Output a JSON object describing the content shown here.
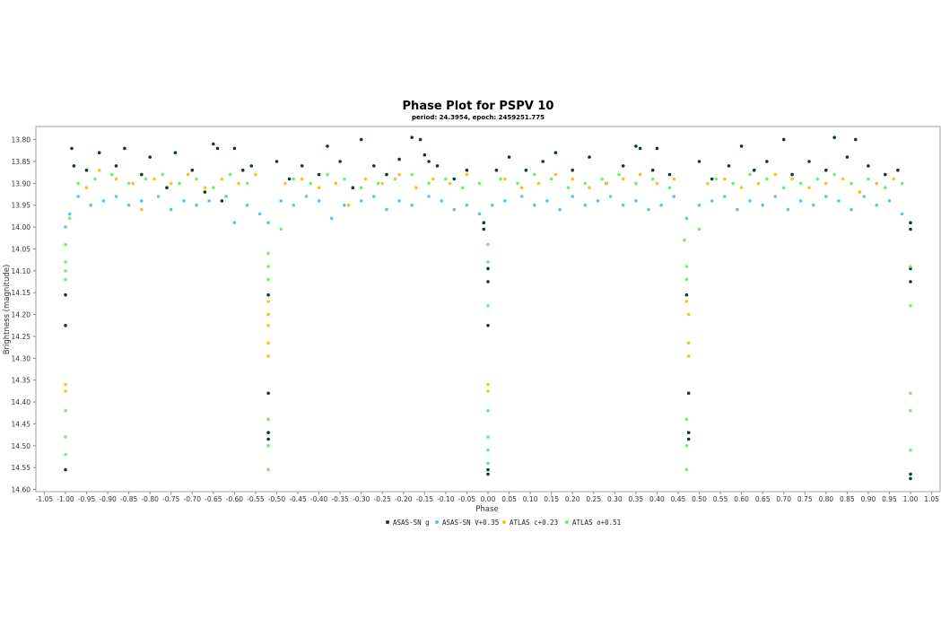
{
  "chart_data": {
    "type": "scatter",
    "title": "Phase Plot for PSPV 10",
    "subtitle": "period: 24.3954, epoch: 2459251.775",
    "xlabel": "Phase",
    "ylabel": "Brightness (magnitude)",
    "xlim": [
      -1.07,
      1.07
    ],
    "ylim": [
      14.605,
      13.77
    ],
    "y_inverted": true,
    "xticks": [
      "-1.05",
      "-1.00",
      "-0.95",
      "-0.90",
      "-0.85",
      "-0.80",
      "-0.75",
      "-0.70",
      "-0.65",
      "-0.60",
      "-0.55",
      "-0.50",
      "-0.45",
      "-0.40",
      "-0.35",
      "-0.30",
      "-0.25",
      "-0.20",
      "-0.15",
      "-0.10",
      "-0.05",
      "0.00",
      "0.05",
      "0.10",
      "0.15",
      "0.20",
      "0.25",
      "0.30",
      "0.35",
      "0.40",
      "0.45",
      "0.50",
      "0.55",
      "0.60",
      "0.65",
      "0.70",
      "0.75",
      "0.80",
      "0.85",
      "0.90",
      "0.95",
      "1.00",
      "1.05"
    ],
    "yticks": [
      "13.80",
      "13.85",
      "13.90",
      "13.95",
      "14.00",
      "14.05",
      "14.10",
      "14.15",
      "14.20",
      "14.25",
      "14.30",
      "14.35",
      "14.40",
      "14.45",
      "14.50",
      "14.55",
      "14.60"
    ],
    "grid": false,
    "legend_position": "bottom",
    "series": [
      {
        "name": "ASAS-SN g",
        "color": "#0d3b3b",
        "points": [
          [
            -1.0,
            14.155
          ],
          [
            -1.0,
            14.225
          ],
          [
            -1.0,
            14.555
          ],
          [
            -0.985,
            13.82
          ],
          [
            -0.98,
            13.86
          ],
          [
            -0.95,
            13.87
          ],
          [
            -0.92,
            13.83
          ],
          [
            -0.88,
            13.86
          ],
          [
            -0.86,
            13.82
          ],
          [
            -0.82,
            13.88
          ],
          [
            -0.8,
            13.84
          ],
          [
            -0.76,
            13.91
          ],
          [
            -0.74,
            13.83
          ],
          [
            -0.7,
            13.87
          ],
          [
            -0.67,
            13.92
          ],
          [
            -0.65,
            13.81
          ],
          [
            -0.64,
            13.82
          ],
          [
            -0.63,
            13.94
          ],
          [
            -0.6,
            13.82
          ],
          [
            -0.58,
            13.87
          ],
          [
            -0.56,
            13.86
          ],
          [
            -0.52,
            14.155
          ],
          [
            -0.52,
            14.38
          ],
          [
            -0.52,
            14.47
          ],
          [
            -0.52,
            14.485
          ],
          [
            -0.5,
            13.85
          ],
          [
            -0.47,
            13.89
          ],
          [
            -0.44,
            13.86
          ],
          [
            -0.4,
            13.88
          ],
          [
            -0.38,
            13.815
          ],
          [
            -0.35,
            13.85
          ],
          [
            -0.32,
            13.91
          ],
          [
            -0.3,
            13.8
          ],
          [
            -0.27,
            13.86
          ],
          [
            -0.24,
            13.88
          ],
          [
            -0.21,
            13.845
          ],
          [
            -0.18,
            13.795
          ],
          [
            -0.16,
            13.8
          ],
          [
            -0.15,
            13.835
          ],
          [
            -0.14,
            13.85
          ],
          [
            -0.12,
            13.86
          ],
          [
            -0.08,
            13.89
          ],
          [
            -0.05,
            13.87
          ],
          [
            -0.01,
            13.99
          ],
          [
            -0.01,
            14.005
          ],
          [
            0.0,
            14.095
          ],
          [
            0.0,
            14.125
          ],
          [
            0.0,
            14.225
          ],
          [
            0.0,
            14.555
          ],
          [
            0.0,
            14.565
          ],
          [
            0.02,
            13.87
          ],
          [
            0.05,
            13.84
          ],
          [
            0.09,
            13.87
          ],
          [
            0.13,
            13.85
          ],
          [
            0.16,
            13.83
          ],
          [
            0.2,
            13.87
          ],
          [
            0.24,
            13.84
          ],
          [
            0.28,
            13.9
          ],
          [
            0.32,
            13.86
          ],
          [
            0.35,
            13.815
          ],
          [
            0.36,
            13.82
          ],
          [
            0.39,
            13.87
          ],
          [
            0.4,
            13.82
          ],
          [
            0.43,
            13.88
          ],
          [
            0.47,
            14.155
          ],
          [
            0.475,
            14.38
          ],
          [
            0.475,
            14.47
          ],
          [
            0.475,
            14.485
          ],
          [
            0.5,
            13.85
          ],
          [
            0.53,
            13.89
          ],
          [
            0.57,
            13.86
          ],
          [
            0.6,
            13.815
          ],
          [
            0.63,
            13.87
          ],
          [
            0.66,
            13.85
          ],
          [
            0.7,
            13.8
          ],
          [
            0.72,
            13.88
          ],
          [
            0.76,
            13.85
          ],
          [
            0.8,
            13.87
          ],
          [
            0.82,
            13.795
          ],
          [
            0.85,
            13.84
          ],
          [
            0.87,
            13.8
          ],
          [
            0.9,
            13.86
          ],
          [
            0.94,
            13.88
          ],
          [
            0.97,
            13.87
          ],
          [
            1.0,
            13.99
          ],
          [
            1.0,
            14.005
          ],
          [
            1.0,
            14.095
          ],
          [
            1.0,
            14.125
          ],
          [
            1.0,
            14.565
          ],
          [
            1.0,
            14.575
          ]
        ]
      },
      {
        "name": "ASAS-SN V+0.35",
        "color": "#5bc4f5",
        "points": [
          [
            -1.0,
            14.0
          ],
          [
            -0.99,
            13.97
          ],
          [
            -0.97,
            13.93
          ],
          [
            -0.94,
            13.95
          ],
          [
            -0.91,
            13.94
          ],
          [
            -0.88,
            13.93
          ],
          [
            -0.85,
            13.95
          ],
          [
            -0.82,
            13.94
          ],
          [
            -0.78,
            13.93
          ],
          [
            -0.75,
            13.96
          ],
          [
            -0.72,
            13.94
          ],
          [
            -0.69,
            13.95
          ],
          [
            -0.66,
            13.94
          ],
          [
            -0.62,
            13.93
          ],
          [
            -0.6,
            13.99
          ],
          [
            -0.57,
            13.95
          ],
          [
            -0.54,
            13.97
          ],
          [
            -0.52,
            13.99
          ],
          [
            -0.49,
            13.94
          ],
          [
            -0.46,
            13.95
          ],
          [
            -0.43,
            13.93
          ],
          [
            -0.4,
            13.94
          ],
          [
            -0.37,
            13.98
          ],
          [
            -0.34,
            13.95
          ],
          [
            -0.3,
            13.94
          ],
          [
            -0.27,
            13.93
          ],
          [
            -0.24,
            13.96
          ],
          [
            -0.21,
            13.94
          ],
          [
            -0.18,
            13.95
          ],
          [
            -0.14,
            13.93
          ],
          [
            -0.11,
            13.94
          ],
          [
            -0.08,
            13.96
          ],
          [
            -0.05,
            13.95
          ],
          [
            -0.02,
            13.97
          ],
          [
            0.01,
            13.95
          ],
          [
            0.04,
            13.94
          ],
          [
            0.08,
            13.93
          ],
          [
            0.11,
            13.95
          ],
          [
            0.14,
            13.94
          ],
          [
            0.17,
            13.96
          ],
          [
            0.2,
            13.93
          ],
          [
            0.23,
            13.95
          ],
          [
            0.26,
            13.94
          ],
          [
            0.29,
            13.93
          ],
          [
            0.32,
            13.95
          ],
          [
            0.35,
            13.94
          ],
          [
            0.38,
            13.96
          ],
          [
            0.41,
            13.95
          ],
          [
            0.44,
            13.93
          ],
          [
            0.47,
            13.98
          ],
          [
            0.5,
            13.95
          ],
          [
            0.53,
            13.94
          ],
          [
            0.56,
            13.93
          ],
          [
            0.59,
            13.96
          ],
          [
            0.62,
            13.94
          ],
          [
            0.65,
            13.95
          ],
          [
            0.68,
            13.93
          ],
          [
            0.71,
            13.96
          ],
          [
            0.74,
            13.94
          ],
          [
            0.77,
            13.95
          ],
          [
            0.8,
            13.93
          ],
          [
            0.83,
            13.94
          ],
          [
            0.86,
            13.96
          ],
          [
            0.89,
            13.93
          ],
          [
            0.92,
            13.95
          ],
          [
            0.95,
            13.94
          ],
          [
            0.98,
            13.97
          ]
        ]
      },
      {
        "name": "ATLAS c+0.23",
        "color": "#f5c518",
        "points": [
          [
            -1.0,
            14.36
          ],
          [
            -1.0,
            14.375
          ],
          [
            -0.95,
            13.91
          ],
          [
            -0.92,
            13.87
          ],
          [
            -0.88,
            13.89
          ],
          [
            -0.84,
            13.9
          ],
          [
            -0.82,
            13.96
          ],
          [
            -0.79,
            13.89
          ],
          [
            -0.75,
            13.9
          ],
          [
            -0.71,
            13.88
          ],
          [
            -0.67,
            13.91
          ],
          [
            -0.63,
            13.89
          ],
          [
            -0.59,
            13.9
          ],
          [
            -0.55,
            13.88
          ],
          [
            -0.52,
            14.17
          ],
          [
            -0.52,
            14.2
          ],
          [
            -0.52,
            14.225
          ],
          [
            -0.52,
            14.265
          ],
          [
            -0.52,
            14.295
          ],
          [
            -0.48,
            13.9
          ],
          [
            -0.44,
            13.89
          ],
          [
            -0.4,
            13.91
          ],
          [
            -0.36,
            13.9
          ],
          [
            -0.33,
            13.95
          ],
          [
            -0.29,
            13.89
          ],
          [
            -0.25,
            13.9
          ],
          [
            -0.21,
            13.88
          ],
          [
            -0.17,
            13.91
          ],
          [
            -0.13,
            13.89
          ],
          [
            -0.09,
            13.9
          ],
          [
            -0.05,
            13.88
          ],
          [
            0.0,
            14.36
          ],
          [
            0.0,
            14.375
          ],
          [
            0.04,
            13.89
          ],
          [
            0.08,
            13.91
          ],
          [
            0.12,
            13.9
          ],
          [
            0.16,
            13.88
          ],
          [
            0.2,
            13.89
          ],
          [
            0.24,
            13.91
          ],
          [
            0.28,
            13.9
          ],
          [
            0.32,
            13.89
          ],
          [
            0.36,
            13.88
          ],
          [
            0.4,
            13.9
          ],
          [
            0.44,
            13.89
          ],
          [
            0.47,
            14.17
          ],
          [
            0.475,
            14.2
          ],
          [
            0.475,
            14.265
          ],
          [
            0.475,
            14.295
          ],
          [
            0.52,
            13.9
          ],
          [
            0.56,
            13.89
          ],
          [
            0.6,
            13.91
          ],
          [
            0.64,
            13.9
          ],
          [
            0.68,
            13.88
          ],
          [
            0.72,
            13.89
          ],
          [
            0.76,
            13.91
          ],
          [
            0.8,
            13.9
          ],
          [
            0.84,
            13.89
          ],
          [
            0.88,
            13.92
          ],
          [
            0.92,
            13.9
          ],
          [
            0.96,
            13.89
          ]
        ]
      },
      {
        "name": "ATLAS o+0.51",
        "color": "#6ef06e",
        "points": [
          [
            -1.0,
            14.04
          ],
          [
            -1.0,
            14.08
          ],
          [
            -1.0,
            14.1
          ],
          [
            -1.0,
            14.12
          ],
          [
            -1.0,
            14.42
          ],
          [
            -1.0,
            14.48
          ],
          [
            -1.0,
            14.52
          ],
          [
            -0.99,
            13.98
          ],
          [
            -0.97,
            13.9
          ],
          [
            -0.93,
            13.89
          ],
          [
            -0.89,
            13.88
          ],
          [
            -0.85,
            13.9
          ],
          [
            -0.81,
            13.89
          ],
          [
            -0.77,
            13.88
          ],
          [
            -0.73,
            13.9
          ],
          [
            -0.69,
            13.89
          ],
          [
            -0.65,
            13.91
          ],
          [
            -0.61,
            13.88
          ],
          [
            -0.57,
            13.9
          ],
          [
            -0.52,
            14.06
          ],
          [
            -0.52,
            14.09
          ],
          [
            -0.52,
            14.12
          ],
          [
            -0.52,
            14.44
          ],
          [
            -0.52,
            14.5
          ],
          [
            -0.52,
            14.555
          ],
          [
            -0.49,
            14.005
          ],
          [
            -0.46,
            13.89
          ],
          [
            -0.42,
            13.9
          ],
          [
            -0.38,
            13.88
          ],
          [
            -0.34,
            13.89
          ],
          [
            -0.3,
            13.91
          ],
          [
            -0.26,
            13.9
          ],
          [
            -0.22,
            13.89
          ],
          [
            -0.18,
            13.88
          ],
          [
            -0.14,
            13.9
          ],
          [
            -0.1,
            13.89
          ],
          [
            -0.06,
            13.91
          ],
          [
            -0.02,
            13.9
          ],
          [
            0.0,
            14.04
          ],
          [
            0.0,
            14.08
          ],
          [
            0.0,
            14.18
          ],
          [
            0.0,
            14.42
          ],
          [
            0.0,
            14.48
          ],
          [
            0.0,
            14.51
          ],
          [
            0.0,
            14.54
          ],
          [
            0.03,
            13.89
          ],
          [
            0.07,
            13.9
          ],
          [
            0.11,
            13.88
          ],
          [
            0.15,
            13.89
          ],
          [
            0.19,
            13.91
          ],
          [
            0.23,
            13.9
          ],
          [
            0.27,
            13.89
          ],
          [
            0.31,
            13.88
          ],
          [
            0.35,
            13.9
          ],
          [
            0.39,
            13.89
          ],
          [
            0.43,
            13.91
          ],
          [
            0.465,
            14.03
          ],
          [
            0.47,
            14.09
          ],
          [
            0.47,
            14.12
          ],
          [
            0.47,
            14.44
          ],
          [
            0.47,
            14.5
          ],
          [
            0.47,
            14.555
          ],
          [
            0.5,
            14.005
          ],
          [
            0.54,
            13.89
          ],
          [
            0.58,
            13.9
          ],
          [
            0.62,
            13.88
          ],
          [
            0.66,
            13.89
          ],
          [
            0.7,
            13.91
          ],
          [
            0.74,
            13.9
          ],
          [
            0.78,
            13.89
          ],
          [
            0.82,
            13.88
          ],
          [
            0.86,
            13.9
          ],
          [
            0.9,
            13.89
          ],
          [
            0.94,
            13.91
          ],
          [
            0.98,
            13.9
          ],
          [
            1.0,
            14.09
          ],
          [
            1.0,
            14.18
          ],
          [
            1.0,
            14.38
          ],
          [
            1.0,
            14.42
          ],
          [
            1.0,
            14.51
          ]
        ]
      }
    ]
  }
}
